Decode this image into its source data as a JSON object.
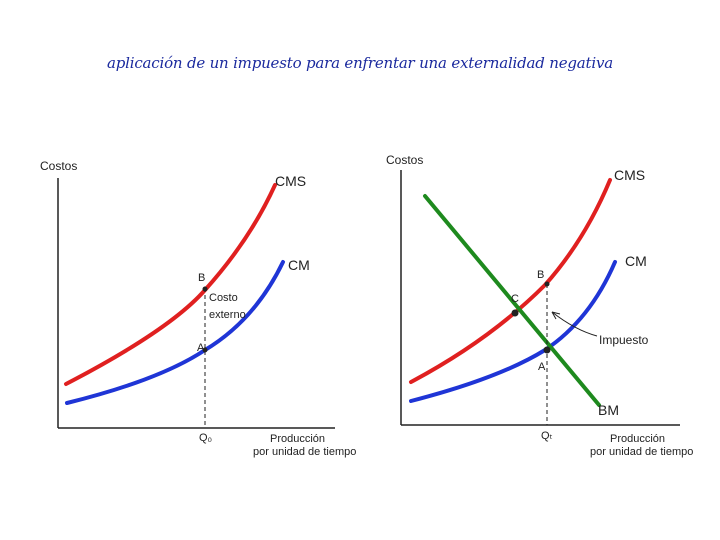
{
  "title": "aplicación de un impuesto para enfrentar una externalidad negativa",
  "colors": {
    "cms": "#e02020",
    "cm": "#1f35d6",
    "bm": "#1e8a1e",
    "axis": "#222222",
    "title": "#1b2a9e"
  },
  "left": {
    "y_axis_label": "Costos",
    "x_axis_label_1": "Producción",
    "x_axis_label_2": "por unidad de tiempo",
    "cms_label": "CMS",
    "cm_label": "CM",
    "point_b": "B",
    "point_a": "A",
    "gap_label_1": "Costo",
    "gap_label_2": "externo",
    "q_label": "Q₀"
  },
  "right": {
    "y_axis_label": "Costos",
    "x_axis_label_1": "Producción",
    "x_axis_label_2": "por unidad de tiempo",
    "cms_label": "CMS",
    "cm_label": "CM",
    "bm_label": "BM",
    "point_b": "B",
    "point_c": "C",
    "point_a": "A",
    "tax_label": "Impuesto",
    "q_label": "Qₜ"
  }
}
